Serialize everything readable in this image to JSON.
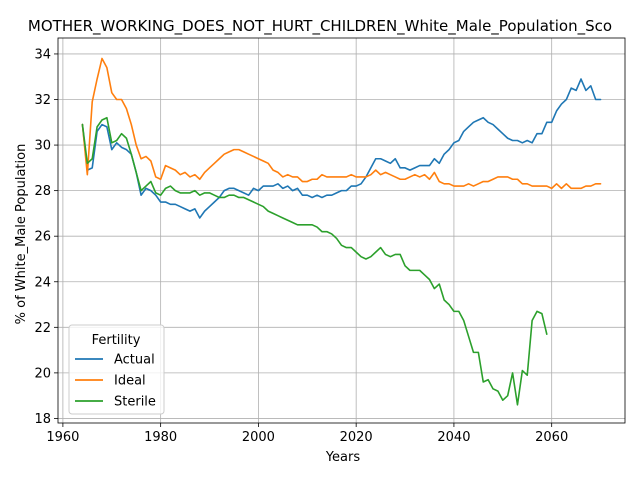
{
  "chart_data": {
    "type": "line",
    "title": "MOTHER_WORKING_DOES_NOT_HURT_CHILDREN_White_Male_Population_Sco",
    "xlabel": "Years",
    "ylabel": "% of White_Male Population",
    "xlim": [
      1959,
      2075
    ],
    "ylim": [
      17.8,
      34.7
    ],
    "xticks": [
      1960,
      1980,
      2000,
      2020,
      2040,
      2060
    ],
    "yticks": [
      18,
      20,
      22,
      24,
      26,
      28,
      30,
      32,
      34
    ],
    "grid": true,
    "legend": {
      "title": "Fertility",
      "placement": "lower-left"
    },
    "colors": {
      "Actual": "#1f77b4",
      "Ideal": "#ff7f0e",
      "Sterile": "#2ca02c"
    },
    "series": [
      {
        "name": "Actual",
        "x": [
          1964,
          1965,
          1966,
          1967,
          1968,
          1969,
          1970,
          1971,
          1972,
          1973,
          1974,
          1975,
          1976,
          1977,
          1978,
          1979,
          1980,
          1981,
          1982,
          1983,
          1984,
          1985,
          1986,
          1987,
          1988,
          1989,
          1990,
          1991,
          1992,
          1993,
          1994,
          1995,
          1996,
          1997,
          1998,
          1999,
          2000,
          2001,
          2002,
          2003,
          2004,
          2005,
          2006,
          2007,
          2008,
          2009,
          2010,
          2011,
          2012,
          2013,
          2014,
          2015,
          2016,
          2017,
          2018,
          2019,
          2020,
          2021,
          2022,
          2023,
          2024,
          2025,
          2026,
          2027,
          2028,
          2029,
          2030,
          2031,
          2032,
          2033,
          2034,
          2035,
          2036,
          2037,
          2038,
          2039,
          2040,
          2041,
          2042,
          2043,
          2044,
          2045,
          2046,
          2047,
          2048,
          2049,
          2050,
          2051,
          2052,
          2053,
          2054,
          2055,
          2056,
          2057,
          2058,
          2059,
          2060,
          2061,
          2062,
          2063,
          2064,
          2065,
          2066,
          2067,
          2068,
          2069,
          2070
        ],
        "values": [
          30.9,
          28.9,
          29.0,
          30.6,
          30.9,
          30.8,
          29.8,
          30.1,
          29.9,
          29.8,
          29.6,
          28.8,
          27.8,
          28.1,
          28.0,
          27.8,
          27.5,
          27.5,
          27.4,
          27.4,
          27.3,
          27.2,
          27.1,
          27.2,
          26.8,
          27.1,
          27.3,
          27.5,
          27.7,
          28.0,
          28.1,
          28.1,
          28.0,
          27.9,
          27.8,
          28.1,
          28.0,
          28.2,
          28.2,
          28.2,
          28.3,
          28.1,
          28.2,
          28.0,
          28.1,
          27.8,
          27.8,
          27.7,
          27.8,
          27.7,
          27.8,
          27.8,
          27.9,
          28.0,
          28.0,
          28.2,
          28.2,
          28.3,
          28.6,
          29.0,
          29.4,
          29.4,
          29.3,
          29.2,
          29.4,
          29.0,
          29.0,
          28.9,
          29.0,
          29.1,
          29.1,
          29.1,
          29.4,
          29.2,
          29.6,
          29.8,
          30.1,
          30.2,
          30.6,
          30.8,
          31.0,
          31.1,
          31.2,
          31.0,
          30.9,
          30.7,
          30.5,
          30.3,
          30.2,
          30.2,
          30.1,
          30.2,
          30.1,
          30.5,
          30.5,
          31.0,
          31.0,
          31.5,
          31.8,
          32.0,
          32.5,
          32.4,
          32.9,
          32.4,
          32.6,
          32.0,
          32.0
        ]
      },
      {
        "name": "Ideal",
        "x": [
          1964,
          1965,
          1966,
          1967,
          1968,
          1969,
          1970,
          1971,
          1972,
          1973,
          1974,
          1975,
          1976,
          1977,
          1978,
          1979,
          1980,
          1981,
          1982,
          1983,
          1984,
          1985,
          1986,
          1987,
          1988,
          1989,
          1990,
          1991,
          1992,
          1993,
          1994,
          1995,
          1996,
          1997,
          1998,
          1999,
          2000,
          2001,
          2002,
          2003,
          2004,
          2005,
          2006,
          2007,
          2008,
          2009,
          2010,
          2011,
          2012,
          2013,
          2014,
          2015,
          2016,
          2017,
          2018,
          2019,
          2020,
          2021,
          2022,
          2023,
          2024,
          2025,
          2026,
          2027,
          2028,
          2029,
          2030,
          2031,
          2032,
          2033,
          2034,
          2035,
          2036,
          2037,
          2038,
          2039,
          2040,
          2041,
          2042,
          2043,
          2044,
          2045,
          2046,
          2047,
          2048,
          2049,
          2050,
          2051,
          2052,
          2053,
          2054,
          2055,
          2056,
          2057,
          2058,
          2059,
          2060,
          2061,
          2062,
          2063,
          2064,
          2065,
          2066,
          2067,
          2068,
          2069,
          2070
        ],
        "values": [
          30.9,
          28.7,
          31.9,
          32.9,
          33.8,
          33.4,
          32.3,
          32.0,
          32.0,
          31.6,
          30.9,
          30.0,
          29.4,
          29.5,
          29.3,
          28.6,
          28.5,
          29.1,
          29.0,
          28.9,
          28.7,
          28.8,
          28.6,
          28.7,
          28.5,
          28.8,
          29.0,
          29.2,
          29.4,
          29.6,
          29.7,
          29.8,
          29.8,
          29.7,
          29.6,
          29.5,
          29.4,
          29.3,
          29.2,
          28.9,
          28.8,
          28.6,
          28.7,
          28.6,
          28.6,
          28.4,
          28.4,
          28.5,
          28.5,
          28.7,
          28.6,
          28.6,
          28.6,
          28.6,
          28.6,
          28.7,
          28.6,
          28.6,
          28.6,
          28.7,
          28.9,
          28.7,
          28.8,
          28.7,
          28.6,
          28.5,
          28.5,
          28.6,
          28.7,
          28.6,
          28.7,
          28.5,
          28.8,
          28.4,
          28.3,
          28.3,
          28.2,
          28.2,
          28.2,
          28.3,
          28.2,
          28.3,
          28.4,
          28.4,
          28.5,
          28.6,
          28.6,
          28.6,
          28.5,
          28.5,
          28.3,
          28.3,
          28.2,
          28.2,
          28.2,
          28.2,
          28.1,
          28.3,
          28.1,
          28.3,
          28.1,
          28.1,
          28.1,
          28.2,
          28.2,
          28.3,
          28.3
        ]
      },
      {
        "name": "Sterile",
        "x": [
          1964,
          1965,
          1966,
          1967,
          1968,
          1969,
          1970,
          1971,
          1972,
          1973,
          1974,
          1975,
          1976,
          1977,
          1978,
          1979,
          1980,
          1981,
          1982,
          1983,
          1984,
          1985,
          1986,
          1987,
          1988,
          1989,
          1990,
          1991,
          1992,
          1993,
          1994,
          1995,
          1996,
          1997,
          1998,
          1999,
          2000,
          2001,
          2002,
          2003,
          2004,
          2005,
          2006,
          2007,
          2008,
          2009,
          2010,
          2011,
          2012,
          2013,
          2014,
          2015,
          2016,
          2017,
          2018,
          2019,
          2020,
          2021,
          2022,
          2023,
          2024,
          2025,
          2026,
          2027,
          2028,
          2029,
          2030,
          2031,
          2032,
          2033,
          2034,
          2035,
          2036,
          2037,
          2038,
          2039,
          2040,
          2041,
          2042,
          2043,
          2044,
          2045,
          2046,
          2047,
          2048,
          2049,
          2050,
          2051,
          2052,
          2053,
          2054,
          2055,
          2056,
          2057,
          2058,
          2059
        ],
        "values": [
          30.9,
          29.2,
          29.4,
          30.8,
          31.1,
          31.2,
          30.1,
          30.2,
          30.5,
          30.3,
          29.6,
          28.8,
          28.0,
          28.2,
          28.4,
          27.9,
          27.8,
          28.1,
          28.2,
          28.0,
          27.9,
          27.9,
          27.9,
          28.0,
          27.8,
          27.9,
          27.9,
          27.8,
          27.7,
          27.7,
          27.8,
          27.8,
          27.7,
          27.7,
          27.6,
          27.5,
          27.4,
          27.3,
          27.1,
          27.0,
          26.9,
          26.8,
          26.7,
          26.6,
          26.5,
          26.5,
          26.5,
          26.5,
          26.4,
          26.2,
          26.2,
          26.1,
          25.9,
          25.6,
          25.5,
          25.5,
          25.3,
          25.1,
          25.0,
          25.1,
          25.3,
          25.5,
          25.2,
          25.1,
          25.2,
          25.2,
          24.7,
          24.5,
          24.5,
          24.5,
          24.3,
          24.1,
          23.7,
          23.9,
          23.2,
          23.0,
          22.7,
          22.7,
          22.3,
          21.6,
          20.9,
          20.9,
          19.6,
          19.7,
          19.3,
          19.2,
          18.8,
          19.0,
          20.0,
          18.6,
          20.1,
          19.9,
          22.3,
          22.7,
          22.6,
          21.7
        ]
      }
    ]
  }
}
